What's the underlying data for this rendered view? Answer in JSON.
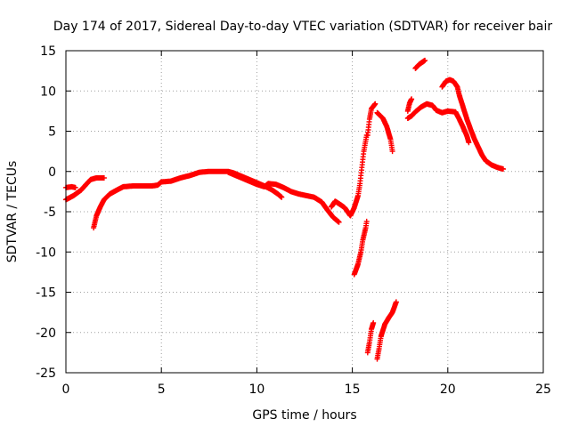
{
  "chart_data": {
    "type": "scatter",
    "title": "Day 174 of 2017, Sidereal Day-to-day VTEC variation (SDTVAR) for receiver bair",
    "xlabel": "GPS time / hours",
    "ylabel": "SDTVAR / TECUs",
    "xlim": [
      0,
      25
    ],
    "ylim": [
      -25,
      15
    ],
    "xticks": [
      0,
      5,
      10,
      15,
      20,
      25
    ],
    "yticks": [
      -25,
      -20,
      -15,
      -10,
      -5,
      0,
      5,
      10,
      15
    ],
    "grid": true,
    "marker": "+",
    "series_color": "#ff0000",
    "series": [
      {
        "name": "s1",
        "points": [
          [
            0.0,
            -2.0
          ],
          [
            0.3,
            -1.9
          ],
          [
            0.5,
            -2.0
          ]
        ]
      },
      {
        "name": "s2",
        "points": [
          [
            0.0,
            -3.5
          ],
          [
            0.4,
            -3.0
          ],
          [
            0.8,
            -2.3
          ],
          [
            1.1,
            -1.5
          ],
          [
            1.3,
            -1.0
          ],
          [
            1.6,
            -0.8
          ],
          [
            2.0,
            -0.8
          ]
        ]
      },
      {
        "name": "s3",
        "points": [
          [
            1.45,
            -7.0
          ],
          [
            1.6,
            -5.5
          ],
          [
            1.8,
            -4.4
          ],
          [
            2.0,
            -3.5
          ],
          [
            2.3,
            -2.8
          ],
          [
            2.6,
            -2.4
          ],
          [
            3.0,
            -1.9
          ],
          [
            3.5,
            -1.8
          ],
          [
            4.0,
            -1.8
          ],
          [
            4.5,
            -1.8
          ],
          [
            4.8,
            -1.7
          ],
          [
            5.0,
            -1.3
          ],
          [
            5.5,
            -1.2
          ],
          [
            6.0,
            -0.8
          ],
          [
            6.5,
            -0.5
          ],
          [
            7.0,
            -0.1
          ],
          [
            7.5,
            0.0
          ],
          [
            8.0,
            0.0
          ],
          [
            8.5,
            0.0
          ],
          [
            8.8,
            -0.2
          ],
          [
            9.2,
            -0.6
          ],
          [
            9.6,
            -1.0
          ],
          [
            10.0,
            -1.4
          ],
          [
            10.4,
            -1.8
          ],
          [
            10.8,
            -2.3
          ],
          [
            11.1,
            -2.8
          ],
          [
            11.3,
            -3.2
          ]
        ]
      },
      {
        "name": "s4",
        "points": [
          [
            8.5,
            -0.1
          ],
          [
            9.0,
            -0.6
          ],
          [
            9.5,
            -1.1
          ],
          [
            10.0,
            -1.6
          ],
          [
            10.4,
            -1.9
          ],
          [
            10.6,
            -1.5
          ],
          [
            11.0,
            -1.6
          ],
          [
            11.4,
            -2.0
          ],
          [
            11.8,
            -2.5
          ],
          [
            12.2,
            -2.8
          ],
          [
            12.6,
            -3.0
          ],
          [
            13.0,
            -3.2
          ],
          [
            13.4,
            -3.8
          ],
          [
            13.7,
            -4.8
          ],
          [
            14.0,
            -5.7
          ],
          [
            14.3,
            -6.3
          ]
        ]
      },
      {
        "name": "s5",
        "points": [
          [
            13.9,
            -4.4
          ],
          [
            14.1,
            -3.7
          ],
          [
            14.3,
            -4.0
          ],
          [
            14.6,
            -4.5
          ],
          [
            14.9,
            -5.5
          ],
          [
            15.1,
            -4.5
          ],
          [
            15.3,
            -3.0
          ],
          [
            15.4,
            -1.5
          ],
          [
            15.5,
            0.5
          ],
          [
            15.6,
            2.5
          ],
          [
            15.75,
            4.5
          ]
        ]
      },
      {
        "name": "s6",
        "points": [
          [
            15.1,
            -12.8
          ],
          [
            15.3,
            -11.5
          ],
          [
            15.45,
            -10.0
          ],
          [
            15.55,
            -8.5
          ],
          [
            15.7,
            -7.0
          ],
          [
            15.75,
            -6.2
          ]
        ]
      },
      {
        "name": "s7",
        "points": [
          [
            15.8,
            4.5
          ],
          [
            15.9,
            6.5
          ],
          [
            16.0,
            7.8
          ],
          [
            16.2,
            8.4
          ]
        ]
      },
      {
        "name": "s8",
        "points": [
          [
            16.3,
            7.3
          ],
          [
            16.6,
            6.6
          ],
          [
            16.8,
            5.6
          ],
          [
            17.0,
            4.0
          ],
          [
            17.1,
            2.5
          ]
        ]
      },
      {
        "name": "s9",
        "points": [
          [
            15.8,
            -22.5
          ],
          [
            15.9,
            -21.2
          ],
          [
            16.0,
            -19.6
          ],
          [
            16.1,
            -18.8
          ]
        ]
      },
      {
        "name": "s10",
        "points": [
          [
            16.3,
            -23.3
          ],
          [
            16.4,
            -22.0
          ],
          [
            16.5,
            -20.5
          ],
          [
            16.7,
            -19.0
          ],
          [
            16.9,
            -18.2
          ],
          [
            17.1,
            -17.5
          ],
          [
            17.3,
            -16.2
          ]
        ]
      },
      {
        "name": "s11",
        "points": [
          [
            17.9,
            6.6
          ],
          [
            18.1,
            6.9
          ],
          [
            18.3,
            7.4
          ],
          [
            18.6,
            8.0
          ],
          [
            18.9,
            8.4
          ],
          [
            19.2,
            8.2
          ],
          [
            19.4,
            7.6
          ],
          [
            19.7,
            7.3
          ],
          [
            20.0,
            7.5
          ],
          [
            20.4,
            7.4
          ],
          [
            20.6,
            6.5
          ],
          [
            20.8,
            5.5
          ],
          [
            21.0,
            4.4
          ],
          [
            21.1,
            3.6
          ]
        ]
      },
      {
        "name": "s12",
        "points": [
          [
            17.9,
            7.5
          ],
          [
            18.0,
            8.5
          ],
          [
            18.1,
            9.0
          ]
        ]
      },
      {
        "name": "s13",
        "points": [
          [
            18.3,
            12.8
          ],
          [
            18.5,
            13.3
          ],
          [
            18.8,
            13.8
          ]
        ]
      },
      {
        "name": "s14",
        "points": [
          [
            19.7,
            10.5
          ],
          [
            19.9,
            11.2
          ],
          [
            20.1,
            11.4
          ],
          [
            20.3,
            11.2
          ],
          [
            20.5,
            10.5
          ],
          [
            20.6,
            9.5
          ],
          [
            20.8,
            8.0
          ],
          [
            21.0,
            6.5
          ],
          [
            21.2,
            5.2
          ],
          [
            21.4,
            4.0
          ],
          [
            21.6,
            3.0
          ],
          [
            21.8,
            2.0
          ],
          [
            22.0,
            1.3
          ],
          [
            22.3,
            0.8
          ],
          [
            22.6,
            0.5
          ],
          [
            22.9,
            0.3
          ]
        ]
      }
    ]
  }
}
